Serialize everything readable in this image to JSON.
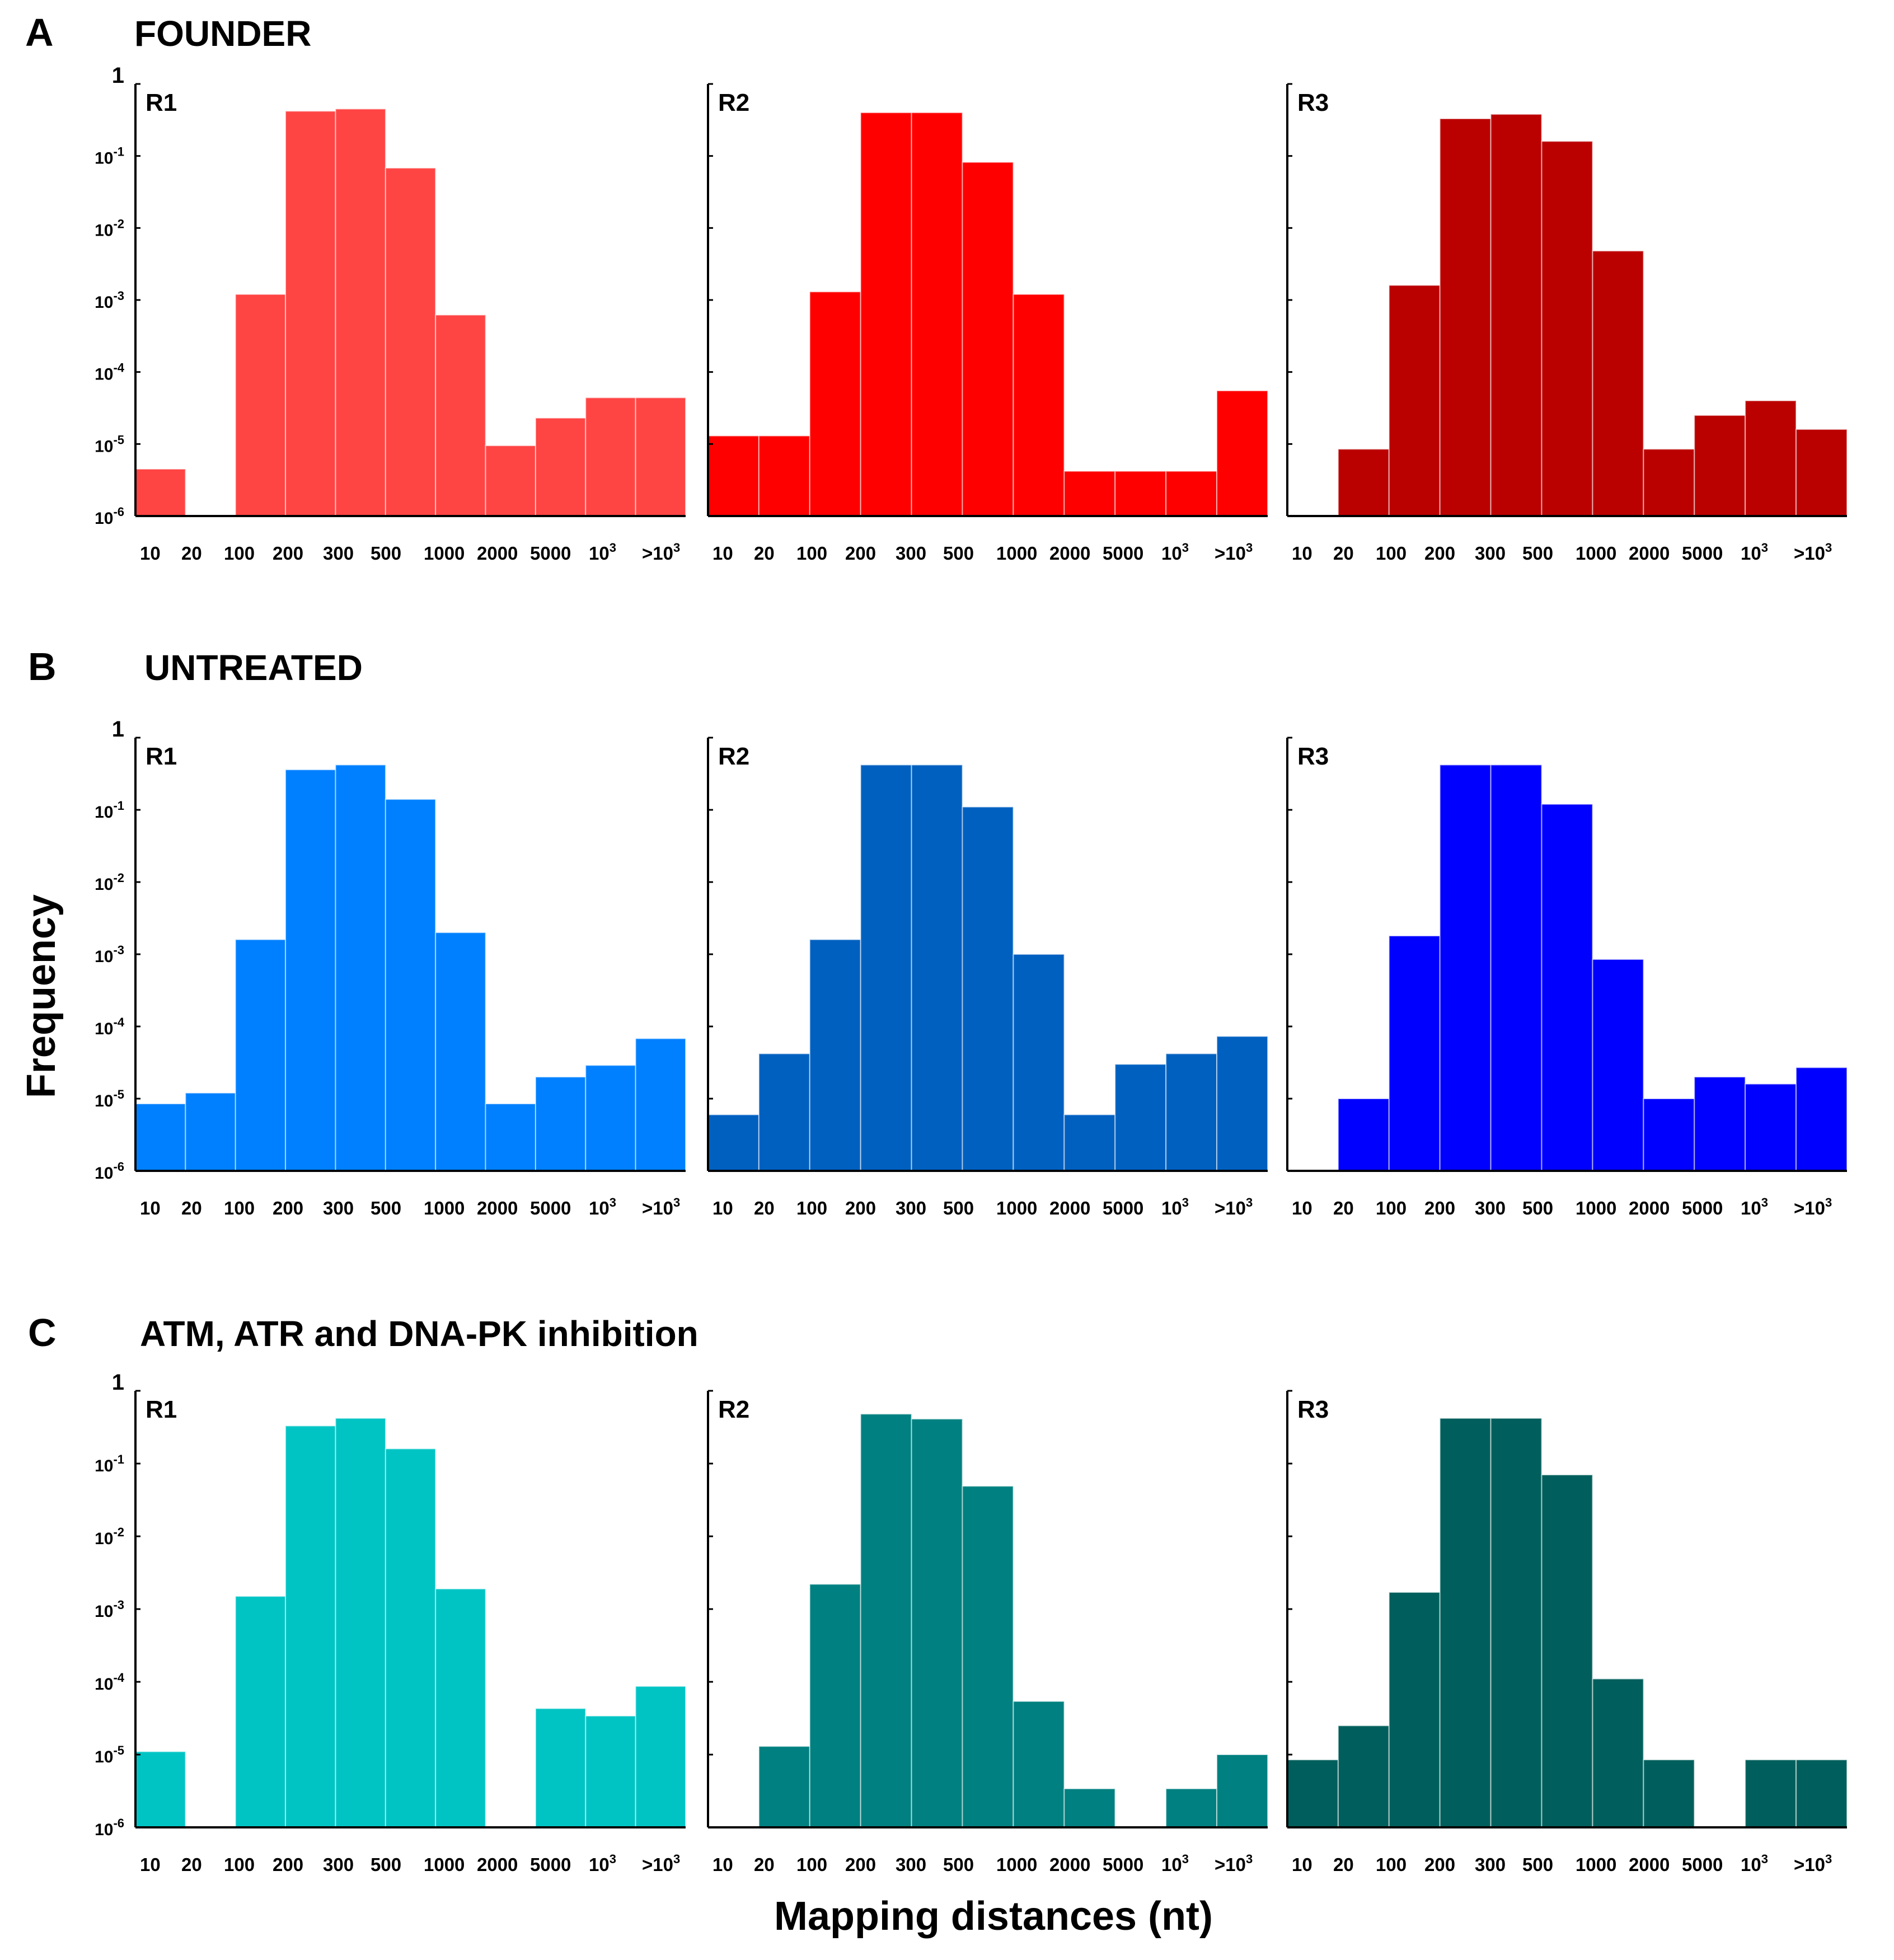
{
  "axes": {
    "ylabel": "Frequency",
    "xlabel": "Mapping distances (nt)",
    "yticks": [
      {
        "base": "10",
        "exp": "-6"
      },
      {
        "base": "10",
        "exp": "-5"
      },
      {
        "base": "10",
        "exp": "-4"
      },
      {
        "base": "10",
        "exp": "-3"
      },
      {
        "base": "10",
        "exp": "-2"
      },
      {
        "base": "10",
        "exp": "-1"
      },
      {
        "base": "1",
        "exp": ""
      }
    ],
    "xticks": [
      {
        "base": "10",
        "exp": ""
      },
      {
        "base": "20",
        "exp": ""
      },
      {
        "base": "100",
        "exp": ""
      },
      {
        "base": "200",
        "exp": ""
      },
      {
        "base": "300",
        "exp": ""
      },
      {
        "base": "500",
        "exp": ""
      },
      {
        "base": "1000",
        "exp": ""
      },
      {
        "base": "2000",
        "exp": ""
      },
      {
        "base": "5000",
        "exp": ""
      },
      {
        "base": "10",
        "exp": "3"
      },
      {
        "base": ">10",
        "exp": "3"
      }
    ]
  },
  "chart_data": [
    {
      "type": "bar",
      "panel": "A",
      "title": "FOUNDER",
      "replicate": "R1",
      "color": "#FF4444",
      "categories": [
        "10",
        "20",
        "100",
        "200",
        "300",
        "500",
        "1000",
        "2000",
        "5000",
        "10^3",
        ">10^3"
      ],
      "values": [
        4.5e-06,
        0,
        0.0012,
        0.42,
        0.45,
        0.068,
        0.00062,
        9.5e-06,
        2.3e-05,
        4.4e-05,
        4.4e-05
      ],
      "yscale": "log",
      "ylim": [
        1e-06,
        1
      ]
    },
    {
      "type": "bar",
      "panel": "A",
      "title": "FOUNDER",
      "replicate": "R2",
      "color": "#FF0000",
      "categories": [
        "10",
        "20",
        "100",
        "200",
        "300",
        "500",
        "1000",
        "2000",
        "5000",
        "10^3",
        ">10^3"
      ],
      "values": [
        1.3e-05,
        1.3e-05,
        0.0013,
        0.4,
        0.4,
        0.082,
        0.0012,
        4.2e-06,
        4.2e-06,
        4.2e-06,
        5.5e-05
      ],
      "yscale": "log",
      "ylim": [
        1e-06,
        1
      ]
    },
    {
      "type": "bar",
      "panel": "A",
      "title": "FOUNDER",
      "replicate": "R3",
      "color": "#BB0000",
      "categories": [
        "10",
        "20",
        "100",
        "200",
        "300",
        "500",
        "1000",
        "2000",
        "5000",
        "10^3",
        ">10^3"
      ],
      "values": [
        0,
        8.5e-06,
        0.0016,
        0.33,
        0.38,
        0.16,
        0.0048,
        8.5e-06,
        2.5e-05,
        4e-05,
        1.6e-05
      ],
      "yscale": "log",
      "ylim": [
        1e-06,
        1
      ]
    },
    {
      "type": "bar",
      "panel": "B",
      "title": "UNTREATED",
      "replicate": "R1",
      "color": "#0080FF",
      "categories": [
        "10",
        "20",
        "100",
        "200",
        "300",
        "500",
        "1000",
        "2000",
        "5000",
        "10^3",
        ">10^3"
      ],
      "values": [
        8.5e-06,
        1.2e-05,
        0.0016,
        0.36,
        0.42,
        0.14,
        0.002,
        8.5e-06,
        2e-05,
        2.9e-05,
        6.8e-05
      ],
      "yscale": "log",
      "ylim": [
        1e-06,
        1
      ]
    },
    {
      "type": "bar",
      "panel": "B",
      "title": "UNTREATED",
      "replicate": "R2",
      "color": "#0060C0",
      "categories": [
        "10",
        "20",
        "100",
        "200",
        "300",
        "500",
        "1000",
        "2000",
        "5000",
        "10^3",
        ">10^3"
      ],
      "values": [
        6e-06,
        4.2e-05,
        0.0016,
        0.42,
        0.42,
        0.11,
        0.001,
        6e-06,
        3e-05,
        4.2e-05,
        7.3e-05
      ],
      "yscale": "log",
      "ylim": [
        1e-06,
        1
      ]
    },
    {
      "type": "bar",
      "panel": "B",
      "title": "UNTREATED",
      "replicate": "R3",
      "color": "#0000FF",
      "categories": [
        "10",
        "20",
        "100",
        "200",
        "300",
        "500",
        "1000",
        "2000",
        "5000",
        "10^3",
        ">10^3"
      ],
      "values": [
        0,
        1e-05,
        0.0018,
        0.42,
        0.42,
        0.12,
        0.00085,
        1e-05,
        2e-05,
        1.6e-05,
        2.7e-05
      ],
      "yscale": "log",
      "ylim": [
        1e-06,
        1
      ]
    },
    {
      "type": "bar",
      "panel": "C",
      "title": "ATM, ATR and DNA-PK inhibition",
      "replicate": "R1",
      "color": "#00C4C4",
      "categories": [
        "10",
        "20",
        "100",
        "200",
        "300",
        "500",
        "1000",
        "2000",
        "5000",
        "10^3",
        ">10^3"
      ],
      "values": [
        1.1e-05,
        0,
        0.0015,
        0.33,
        0.42,
        0.16,
        0.0019,
        0,
        4.3e-05,
        3.4e-05,
        8.7e-05
      ],
      "yscale": "log",
      "ylim": [
        1e-06,
        1
      ]
    },
    {
      "type": "bar",
      "panel": "C",
      "title": "ATM, ATR and DNA-PK inhibition",
      "replicate": "R2",
      "color": "#008080",
      "categories": [
        "10",
        "20",
        "100",
        "200",
        "300",
        "500",
        "1000",
        "2000",
        "5000",
        "10^3",
        ">10^3"
      ],
      "values": [
        0,
        1.3e-05,
        0.0022,
        0.48,
        0.41,
        0.049,
        5.4e-05,
        3.4e-06,
        0,
        3.4e-06,
        1e-05
      ],
      "yscale": "log",
      "ylim": [
        1e-06,
        1
      ]
    },
    {
      "type": "bar",
      "panel": "C",
      "title": "ATM, ATR and DNA-PK inhibition",
      "replicate": "R3",
      "color": "#005F5C",
      "categories": [
        "10",
        "20",
        "100",
        "200",
        "300",
        "500",
        "1000",
        "2000",
        "5000",
        "10^3",
        ">10^3"
      ],
      "values": [
        8.5e-06,
        2.5e-05,
        0.0017,
        0.42,
        0.42,
        0.07,
        0.00011,
        8.5e-06,
        0,
        8.5e-06,
        8.5e-06
      ],
      "yscale": "log",
      "ylim": [
        1e-06,
        1
      ]
    }
  ]
}
